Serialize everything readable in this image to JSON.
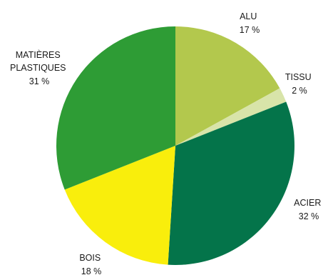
{
  "chart_data": {
    "type": "pie",
    "title": "",
    "slices": [
      {
        "label_lines": [
          "ALU"
        ],
        "percent_text": "17 %",
        "value": 17,
        "color": "#b3c84d"
      },
      {
        "label_lines": [
          "TISSU"
        ],
        "percent_text": "2 %",
        "value": 2,
        "color": "#d8e4a9"
      },
      {
        "label_lines": [
          "ACIER"
        ],
        "percent_text": "32 %",
        "value": 32,
        "color": "#04744a"
      },
      {
        "label_lines": [
          "BOIS"
        ],
        "percent_text": "18 %",
        "value": 18,
        "color": "#f9ee0c"
      },
      {
        "label_lines": [
          "MATIÈRES",
          "PLASTIQUES"
        ],
        "percent_text": "31 %",
        "value": 31,
        "color": "#2e9c35"
      }
    ],
    "start": "12 o'clock",
    "direction": "clockwise"
  }
}
